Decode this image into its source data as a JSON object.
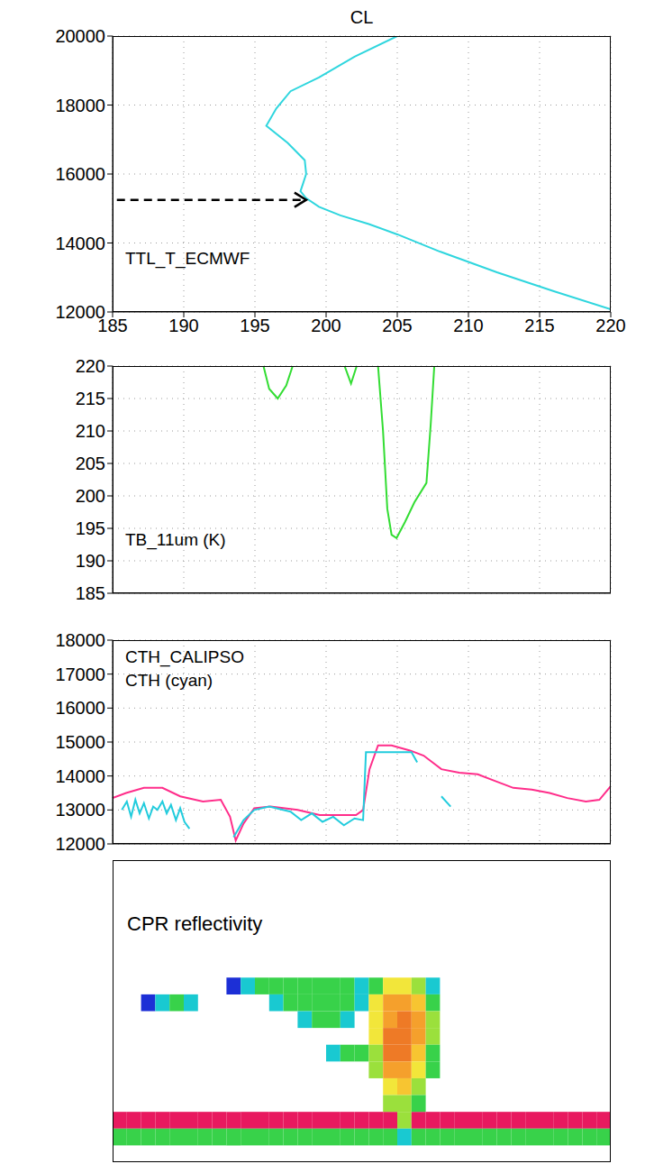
{
  "chart_data": [
    {
      "type": "line",
      "title": "CL",
      "series": [
        {
          "name": "TTL_T_ECMWF",
          "color": "#2fd6de",
          "x": [
            220,
            216,
            212,
            208,
            205,
            203,
            201,
            199.5,
            198.6,
            198.2,
            198.4,
            198.6,
            198.5,
            197.3,
            195.8,
            196.5,
            197.5,
            199.5,
            202,
            205
          ],
          "values": [
            12080,
            12600,
            13150,
            13750,
            14250,
            14550,
            14800,
            15050,
            15300,
            15500,
            15750,
            16000,
            16400,
            16900,
            17400,
            17900,
            18400,
            18800,
            19400,
            20000
          ]
        }
      ],
      "xlim": [
        185,
        220
      ],
      "xticks": [
        185,
        190,
        195,
        200,
        205,
        210,
        215,
        220
      ],
      "ylim": [
        12000,
        20000
      ],
      "yticks": [
        12000,
        14000,
        16000,
        18000,
        20000
      ],
      "grid": true,
      "annotations": [
        {
          "type": "arrow",
          "x": [
            185.3,
            198.6
          ],
          "y": [
            15250,
            15250
          ],
          "line_style": "dashed"
        }
      ]
    },
    {
      "type": "line",
      "series": [
        {
          "name": "TB_11um (K)",
          "color": "#33dd33",
          "x": [
            21.2,
            22.0,
            23.2,
            24.4,
            25.3,
            29.0,
            32.6,
            33.5,
            34.3,
            36.0,
            37.3,
            38.0,
            38.6,
            39.2,
            39.9,
            41.1,
            42.4,
            44.1,
            44.7,
            45.2
          ],
          "values": [
            220,
            216.5,
            215,
            217,
            220,
            null,
            220,
            217.3,
            220,
            null,
            220,
            210,
            198,
            194,
            193.5,
            196,
            199,
            202,
            211,
            220
          ]
        }
      ],
      "xlim": [
        0,
        70
      ],
      "xticks": [
        0,
        10,
        20,
        30,
        40,
        50,
        60,
        70
      ],
      "ylim": [
        185,
        220
      ],
      "yticks": [
        185,
        190,
        195,
        200,
        205,
        210,
        215,
        220
      ],
      "grid": true,
      "tick_labels": "y"
    },
    {
      "type": "line",
      "series": [
        {
          "name": "CTH_CALIPSO",
          "color": "#ff2d8a",
          "x": [
            0,
            1.9,
            4.4,
            7.0,
            9.5,
            12.7,
            15.2,
            16.5,
            17.3,
            18.4,
            19.9,
            22.2,
            26.0,
            29.1,
            34.2,
            35.2,
            36.1,
            37.3,
            39.2,
            41.8,
            43.7,
            46.2,
            48.7,
            51.3,
            53.8,
            56.3,
            58.9,
            61.4,
            63.9,
            66.5,
            68.4,
            70
          ],
          "values": [
            13350,
            13500,
            13650,
            13650,
            13400,
            13250,
            13300,
            12800,
            12100,
            12600,
            13050,
            13100,
            13000,
            12850,
            12850,
            13000,
            14200,
            14900,
            14900,
            14750,
            14600,
            14200,
            14100,
            14050,
            13850,
            13650,
            13600,
            13500,
            13350,
            13250,
            13300,
            13700
          ]
        },
        {
          "name": "CTH (cyan)",
          "color": "#22ccdd",
          "x": [
            1.3,
            2.0,
            2.6,
            3.2,
            3.8,
            4.4,
            5.1,
            5.7,
            6.3,
            7.0,
            7.6,
            8.2,
            8.9,
            9.5,
            10.1,
            10.8,
            11.5,
            17.0,
            18.4,
            19.9,
            22.0,
            25.0,
            26.5,
            28.0,
            29.5,
            31.0,
            32.5,
            34.0,
            35.2,
            35.6,
            39.0,
            42.0,
            42.8,
            43.5,
            46.2,
            47.5
          ],
          "values": [
            13000,
            13250,
            12800,
            13300,
            12900,
            13200,
            12750,
            13100,
            13000,
            13250,
            12900,
            13150,
            12700,
            13050,
            12650,
            12450,
            null,
            12200,
            12700,
            13000,
            13100,
            12950,
            12700,
            12900,
            12650,
            12800,
            12550,
            12750,
            12700,
            14700,
            14700,
            14700,
            14400,
            null,
            13400,
            13100
          ]
        }
      ],
      "xlim": [
        0,
        70
      ],
      "xticks": [
        0,
        10,
        20,
        30,
        40,
        50,
        60,
        70
      ],
      "ylim": [
        12000,
        18000
      ],
      "yticks": [
        12000,
        13000,
        14000,
        15000,
        16000,
        17000,
        18000
      ],
      "grid": true,
      "tick_labels": "y"
    },
    {
      "type": "heatmap",
      "title": "CPR reflectivity",
      "xlim": [
        0,
        70
      ],
      "ylim": [
        0,
        18
      ],
      "xbins": [
        0,
        2,
        4,
        6,
        8,
        10,
        12,
        14,
        16,
        18,
        20,
        22,
        24,
        26,
        28,
        30,
        32,
        34,
        36,
        38,
        40,
        42,
        44,
        46,
        48,
        50,
        52,
        54,
        56,
        58,
        60,
        62,
        64,
        66,
        68,
        70
      ],
      "ybins": [
        0,
        1,
        2,
        3,
        4,
        5,
        6,
        7,
        8,
        9,
        10,
        11,
        12,
        13,
        14,
        15,
        16,
        17,
        18
      ],
      "color_scale": [
        {
          "value": -25,
          "color": "#1c2fd6"
        },
        {
          "value": -20,
          "color": "#19c9d1"
        },
        {
          "value": -15,
          "color": "#38d24a"
        },
        {
          "value": -10,
          "color": "#9be03c"
        },
        {
          "value": -5,
          "color": "#f2e63a"
        },
        {
          "value": 0,
          "color": "#f7c531"
        },
        {
          "value": 5,
          "color": "#f5a02c"
        },
        {
          "value": 10,
          "color": "#ee7a26"
        },
        {
          "value": 20,
          "color": "#e8195f"
        }
      ],
      "cells": [
        [
          0,
          2,
          20
        ],
        [
          2,
          2,
          20
        ],
        [
          4,
          2,
          20
        ],
        [
          6,
          2,
          20
        ],
        [
          8,
          2,
          20
        ],
        [
          10,
          2,
          20
        ],
        [
          12,
          2,
          20
        ],
        [
          14,
          2,
          20
        ],
        [
          16,
          2,
          20
        ],
        [
          18,
          2,
          20
        ],
        [
          20,
          2,
          20
        ],
        [
          22,
          2,
          20
        ],
        [
          24,
          2,
          20
        ],
        [
          26,
          2,
          20
        ],
        [
          28,
          2,
          20
        ],
        [
          30,
          2,
          20
        ],
        [
          32,
          2,
          20
        ],
        [
          34,
          2,
          20
        ],
        [
          36,
          2,
          20
        ],
        [
          38,
          2,
          20
        ],
        [
          40,
          2,
          -10
        ],
        [
          42,
          2,
          20
        ],
        [
          44,
          2,
          20
        ],
        [
          46,
          2,
          20
        ],
        [
          48,
          2,
          20
        ],
        [
          50,
          2,
          20
        ],
        [
          52,
          2,
          20
        ],
        [
          54,
          2,
          20
        ],
        [
          56,
          2,
          20
        ],
        [
          58,
          2,
          20
        ],
        [
          60,
          2,
          20
        ],
        [
          62,
          2,
          20
        ],
        [
          64,
          2,
          20
        ],
        [
          66,
          2,
          20
        ],
        [
          68,
          2,
          20
        ],
        [
          0,
          1,
          -15
        ],
        [
          2,
          1,
          -15
        ],
        [
          4,
          1,
          -15
        ],
        [
          6,
          1,
          -15
        ],
        [
          8,
          1,
          -15
        ],
        [
          10,
          1,
          -15
        ],
        [
          12,
          1,
          -15
        ],
        [
          14,
          1,
          -15
        ],
        [
          16,
          1,
          -15
        ],
        [
          18,
          1,
          -15
        ],
        [
          20,
          1,
          -15
        ],
        [
          22,
          1,
          -15
        ],
        [
          24,
          1,
          -15
        ],
        [
          26,
          1,
          -15
        ],
        [
          28,
          1,
          -15
        ],
        [
          30,
          1,
          -15
        ],
        [
          32,
          1,
          -15
        ],
        [
          34,
          1,
          -15
        ],
        [
          36,
          1,
          -15
        ],
        [
          38,
          1,
          -15
        ],
        [
          40,
          1,
          -20
        ],
        [
          42,
          1,
          -15
        ],
        [
          44,
          1,
          -15
        ],
        [
          46,
          1,
          -15
        ],
        [
          48,
          1,
          -15
        ],
        [
          50,
          1,
          -15
        ],
        [
          52,
          1,
          -15
        ],
        [
          54,
          1,
          -15
        ],
        [
          56,
          1,
          -15
        ],
        [
          58,
          1,
          -15
        ],
        [
          60,
          1,
          -15
        ],
        [
          62,
          1,
          -15
        ],
        [
          64,
          1,
          -15
        ],
        [
          66,
          1,
          -15
        ],
        [
          68,
          1,
          -15
        ],
        [
          4,
          9,
          -25
        ],
        [
          6,
          9,
          -20
        ],
        [
          8,
          9,
          -15
        ],
        [
          10,
          9,
          -20
        ],
        [
          16,
          10,
          -25
        ],
        [
          18,
          10,
          -20
        ],
        [
          20,
          10,
          -15
        ],
        [
          22,
          10,
          -15
        ],
        [
          24,
          10,
          -15
        ],
        [
          26,
          10,
          -15
        ],
        [
          28,
          10,
          -15
        ],
        [
          30,
          10,
          -15
        ],
        [
          32,
          10,
          -15
        ],
        [
          34,
          10,
          -20
        ],
        [
          22,
          9,
          -20
        ],
        [
          24,
          9,
          -15
        ],
        [
          26,
          9,
          -15
        ],
        [
          28,
          9,
          -15
        ],
        [
          30,
          9,
          -15
        ],
        [
          32,
          9,
          -15
        ],
        [
          34,
          9,
          -20
        ],
        [
          26,
          8,
          -20
        ],
        [
          28,
          8,
          -15
        ],
        [
          30,
          8,
          -15
        ],
        [
          32,
          8,
          -20
        ],
        [
          30,
          6,
          -20
        ],
        [
          32,
          6,
          -15
        ],
        [
          34,
          6,
          -15
        ],
        [
          36,
          10,
          -15
        ],
        [
          38,
          10,
          -5
        ],
        [
          40,
          10,
          -5
        ],
        [
          42,
          10,
          -10
        ],
        [
          44,
          10,
          -20
        ],
        [
          36,
          9,
          -5
        ],
        [
          38,
          9,
          5
        ],
        [
          40,
          9,
          5
        ],
        [
          42,
          9,
          0
        ],
        [
          44,
          9,
          -15
        ],
        [
          36,
          8,
          -5
        ],
        [
          38,
          8,
          5
        ],
        [
          40,
          8,
          10
        ],
        [
          42,
          8,
          5
        ],
        [
          44,
          8,
          -10
        ],
        [
          36,
          7,
          -5
        ],
        [
          38,
          7,
          10
        ],
        [
          40,
          7,
          10
        ],
        [
          42,
          7,
          5
        ],
        [
          44,
          7,
          -10
        ],
        [
          36,
          6,
          -10
        ],
        [
          38,
          6,
          10
        ],
        [
          40,
          6,
          10
        ],
        [
          42,
          6,
          0
        ],
        [
          44,
          6,
          -15
        ],
        [
          36,
          5,
          -10
        ],
        [
          38,
          5,
          5
        ],
        [
          40,
          5,
          5
        ],
        [
          42,
          5,
          -5
        ],
        [
          44,
          5,
          -15
        ],
        [
          38,
          4,
          -5
        ],
        [
          40,
          4,
          0
        ],
        [
          42,
          4,
          -10
        ],
        [
          38,
          3,
          -10
        ],
        [
          40,
          3,
          -10
        ],
        [
          42,
          3,
          -15
        ]
      ],
      "tick_labels": false
    }
  ]
}
